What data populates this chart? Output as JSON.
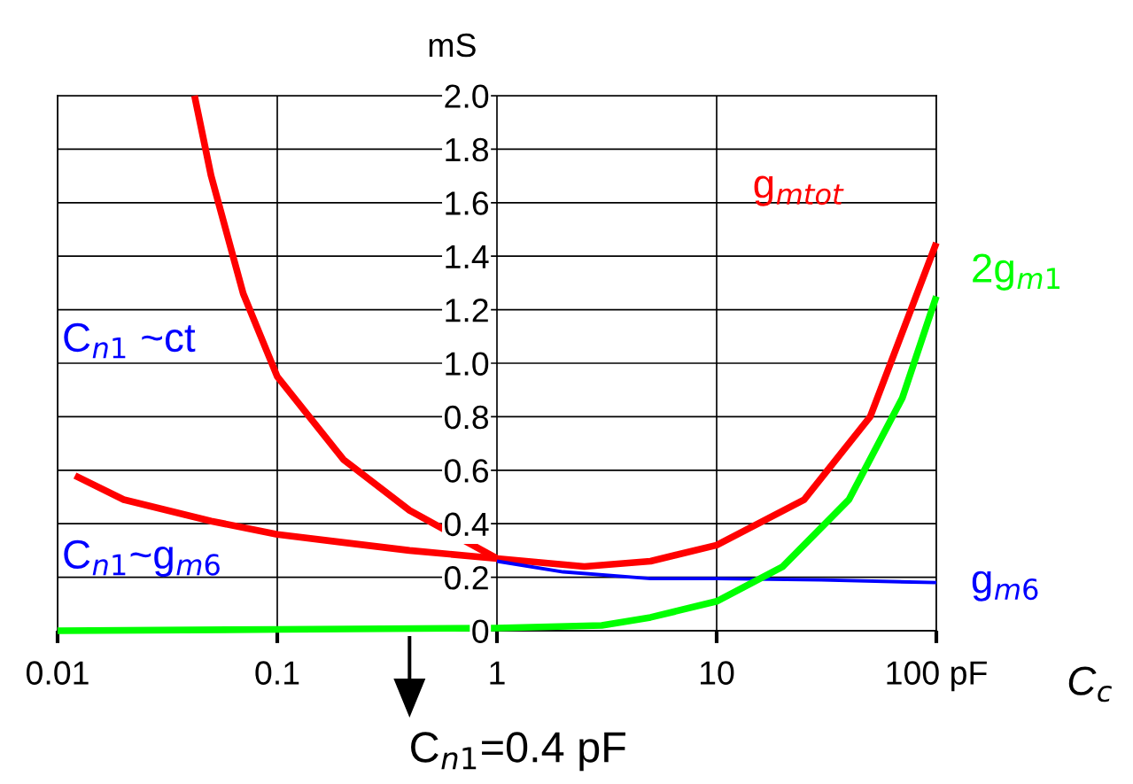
{
  "chart_data": {
    "type": "line",
    "ylabel": "mS",
    "xlabel": "C$_{c}$",
    "log": "x",
    "grid": true,
    "marker": "none",
    "line_style": "solid",
    "xlim": [
      0.01,
      100
    ],
    "xticks": [
      0.01,
      0.1,
      1,
      10,
      {
        "value": 100,
        "label": "100 pF"
      }
    ],
    "ylim": [
      0,
      2.0
    ],
    "yticks": [
      0,
      0.2,
      0.4,
      0.6,
      0.8,
      {
        "value": 1,
        "label": "1.0"
      },
      1.2,
      1.4,
      1.6,
      1.8,
      {
        "value": 2,
        "label": "2.0"
      }
    ],
    "series": [
      {
        "name": "g$_{mtot}$",
        "color": "#ff0000",
        "x": [
          0.042,
          0.05,
          0.07,
          0.1,
          0.2,
          0.4,
          1,
          2.5,
          5,
          10,
          25,
          50,
          100
        ],
        "values": [
          2.0,
          1.7,
          1.26,
          0.95,
          0.64,
          0.45,
          0.27,
          0.24,
          0.26,
          0.32,
          0.49,
          0.8,
          1.45
        ]
      },
      {
        "color": "#ff0000",
        "x": [
          0.012,
          0.02,
          0.05,
          0.1,
          0.2,
          0.4,
          1
        ],
        "values": [
          0.58,
          0.49,
          0.41,
          0.36,
          0.33,
          0.3,
          0.27
        ]
      },
      {
        "name": "g$_{m6}$",
        "color": "#0000ff",
        "x": [
          1,
          2,
          5,
          10,
          30,
          100
        ],
        "values": [
          0.26,
          0.22,
          0.195,
          0.195,
          0.19,
          0.18
        ]
      },
      {
        "name": "2g$_{m1}$",
        "color": "#00ff00",
        "x": [
          0.01,
          0.1,
          1,
          3,
          5,
          10,
          20,
          40,
          70,
          100
        ],
        "values": [
          0.0,
          0.005,
          0.01,
          0.02,
          0.05,
          0.11,
          0.24,
          0.49,
          0.87,
          1.25
        ]
      }
    ],
    "annotations": [
      "C$_{n1}$ ~ct",
      "C$_{n1}$~g$_{m6}$",
      {
        "text": "C$_{n1}$=0.4 pF",
        "x": 0.4,
        "y": 0
      }
    ]
  }
}
